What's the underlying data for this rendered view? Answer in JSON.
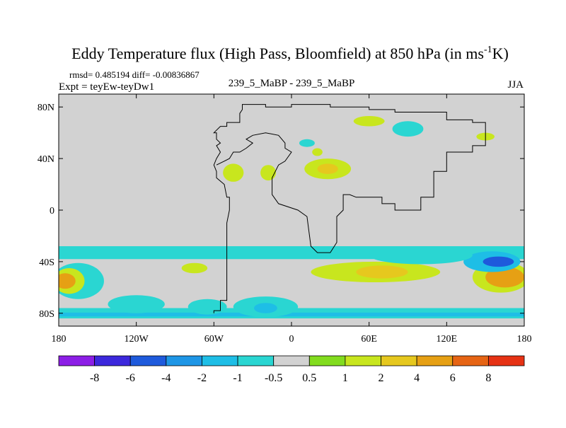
{
  "chart_data": {
    "type": "heatmap",
    "title_main": "Eddy Temperature flux (High Pass, Bloomfield) at 850 hPa (in ms",
    "title_sup": "-1",
    "title_end": "K)",
    "stats": "rmsd= 0.485194  diff= -0.00836867",
    "expt": "Expt = teyEw-teyDw1",
    "case": "239_5_MaBP - 239_5_MaBP",
    "season": "JJA",
    "x_ticks": [
      "180",
      "120W",
      "60W",
      "0",
      "60E",
      "120E",
      "180"
    ],
    "y_ticks": [
      "80N",
      "40N",
      "0",
      "40S",
      "80S"
    ],
    "xlim": [
      -180,
      180
    ],
    "ylim": [
      -90,
      90
    ],
    "colorbar": {
      "colors": [
        "#8c1ee6",
        "#3c28dc",
        "#1e5adc",
        "#1e96e6",
        "#1ebee6",
        "#2ad6d2",
        "#d2d2d2",
        "#82dc1e",
        "#c8e61e",
        "#e6c81e",
        "#e6a014",
        "#e66414",
        "#e63214"
      ],
      "labels": [
        "-8",
        "-6",
        "-4",
        "-2",
        "-1",
        "-0.5",
        "0.5",
        "1",
        "2",
        "4",
        "6",
        "8"
      ]
    },
    "field_patches": [
      {
        "lon": -165,
        "lat": -55,
        "rlon": 20,
        "rlat": 14,
        "level": "-0.5"
      },
      {
        "lon": -172,
        "lat": -55,
        "rlon": 12,
        "rlat": 10,
        "level": "1"
      },
      {
        "lon": -175,
        "lat": -55,
        "rlon": 8,
        "rlat": 6,
        "level": "4"
      },
      {
        "lon": 162,
        "lat": -52,
        "rlon": 22,
        "rlat": 12,
        "level": "1"
      },
      {
        "lon": 165,
        "lat": -52,
        "rlon": 15,
        "rlat": 8,
        "level": "4"
      },
      {
        "lon": 155,
        "lat": -40,
        "rlon": 22,
        "rlat": 8,
        "level": "-1"
      },
      {
        "lon": 160,
        "lat": -40,
        "rlon": 12,
        "rlat": 4,
        "level": "-4"
      },
      {
        "lon": 65,
        "lat": -48,
        "rlon": 50,
        "rlat": 8,
        "level": "1"
      },
      {
        "lon": 70,
        "lat": -48,
        "rlon": 20,
        "rlat": 5,
        "level": "2"
      },
      {
        "lon": 100,
        "lat": -35,
        "rlon": 40,
        "rlat": 7,
        "level": "-0.5"
      },
      {
        "lon": -120,
        "lat": -73,
        "rlon": 22,
        "rlat": 7,
        "level": "-0.5"
      },
      {
        "lon": -20,
        "lat": -75,
        "rlon": 25,
        "rlat": 8,
        "level": "-0.5"
      },
      {
        "lon": -20,
        "lat": -76,
        "rlon": 9,
        "rlat": 4,
        "level": "-1"
      },
      {
        "lon": -65,
        "lat": -75,
        "rlon": 15,
        "rlat": 6,
        "level": "-0.5"
      },
      {
        "lon": -75,
        "lat": -45,
        "rlon": 10,
        "rlat": 4,
        "level": "1"
      },
      {
        "lon": 28,
        "lat": 32,
        "rlon": 18,
        "rlat": 8,
        "level": "1"
      },
      {
        "lon": 28,
        "lat": 32,
        "rlon": 8,
        "rlat": 4,
        "level": "2"
      },
      {
        "lon": -45,
        "lat": 29,
        "rlon": 8,
        "rlat": 7,
        "level": "1"
      },
      {
        "lon": -18,
        "lat": 29,
        "rlon": 6,
        "rlat": 6,
        "level": "1"
      },
      {
        "lon": 90,
        "lat": 63,
        "rlon": 12,
        "rlat": 6,
        "level": "-0.5"
      },
      {
        "lon": 60,
        "lat": 69,
        "rlon": 12,
        "rlat": 4,
        "level": "1"
      },
      {
        "lon": 150,
        "lat": 57,
        "rlon": 7,
        "rlat": 3,
        "level": "1"
      },
      {
        "lon": 12,
        "lat": 52,
        "rlon": 6,
        "rlat": 3,
        "level": "-0.5"
      },
      {
        "lon": 20,
        "lat": 45,
        "rlon": 4,
        "rlat": 3,
        "level": "1"
      }
    ],
    "field_bands": [
      {
        "lat": -33,
        "h": 10,
        "level": "-0.5"
      },
      {
        "lat": -80,
        "h": 8,
        "level": "-0.5"
      },
      {
        "lat": -81,
        "h": 3,
        "level": "-1"
      }
    ],
    "continent_outline": [
      [
        [
          -60,
          -80
        ],
        [
          -60,
          -78
        ],
        [
          -55,
          -78
        ],
        [
          -55,
          -70
        ],
        [
          -50,
          -70
        ],
        [
          -50,
          -40
        ],
        [
          -50,
          -20
        ],
        [
          -50,
          -10
        ],
        [
          -48,
          0
        ],
        [
          -48,
          10
        ],
        [
          -50,
          10
        ],
        [
          -52,
          20
        ],
        [
          -58,
          25
        ],
        [
          -58,
          30
        ],
        [
          -60,
          35
        ],
        [
          -58,
          40
        ],
        [
          -55,
          45
        ],
        [
          -58,
          50
        ],
        [
          -55,
          52
        ],
        [
          -58,
          55
        ],
        [
          -58,
          60
        ],
        [
          -60,
          60
        ],
        [
          -55,
          65
        ],
        [
          -50,
          65
        ],
        [
          -50,
          68
        ],
        [
          -40,
          68
        ],
        [
          -40,
          75
        ],
        [
          -38,
          78
        ],
        [
          -38,
          82
        ],
        [
          -20,
          82
        ],
        [
          -20,
          80
        ],
        [
          0,
          80
        ],
        [
          0,
          82
        ],
        [
          30,
          82
        ],
        [
          30,
          80
        ],
        [
          60,
          80
        ],
        [
          60,
          78
        ],
        [
          80,
          78
        ],
        [
          80,
          76
        ],
        [
          120,
          76
        ],
        [
          120,
          70
        ],
        [
          140,
          70
        ],
        [
          140,
          68
        ],
        [
          150,
          68
        ],
        [
          150,
          50
        ],
        [
          140,
          50
        ],
        [
          140,
          45
        ],
        [
          120,
          45
        ],
        [
          120,
          30
        ],
        [
          110,
          30
        ],
        [
          110,
          10
        ],
        [
          100,
          10
        ],
        [
          100,
          0
        ],
        [
          80,
          0
        ],
        [
          80,
          5
        ],
        [
          70,
          5
        ],
        [
          70,
          10
        ],
        [
          50,
          10
        ],
        [
          45,
          12
        ],
        [
          40,
          12
        ],
        [
          40,
          0
        ],
        [
          35,
          -5
        ],
        [
          35,
          -25
        ],
        [
          30,
          -33
        ],
        [
          20,
          -33
        ],
        [
          15,
          -28
        ],
        [
          12,
          -5
        ],
        [
          5,
          0
        ],
        [
          -10,
          5
        ],
        [
          -15,
          12
        ],
        [
          -15,
          25
        ],
        [
          -10,
          35
        ],
        [
          -5,
          38
        ],
        [
          0,
          45
        ],
        [
          -5,
          48
        ],
        [
          -5,
          52
        ],
        [
          -10,
          58
        ],
        [
          -20,
          60
        ],
        [
          -30,
          58
        ],
        [
          -35,
          55
        ],
        [
          -30,
          52
        ],
        [
          -35,
          48
        ],
        [
          -40,
          45
        ],
        [
          -45,
          45
        ],
        [
          -48,
          40
        ],
        [
          -52,
          38
        ],
        [
          -58,
          35
        ]
      ]
    ]
  }
}
